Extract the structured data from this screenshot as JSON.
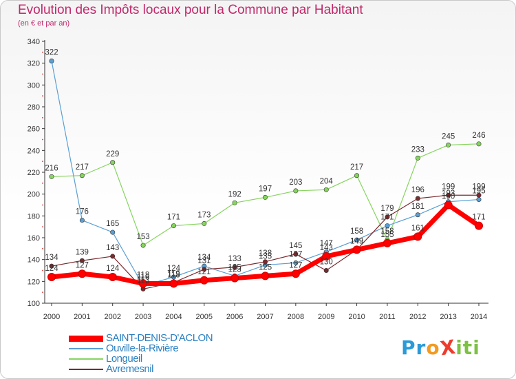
{
  "header": {
    "title": "Evolution des Impôts locaux pour la Commune par Habitant",
    "subtitle": "(en € et par an)"
  },
  "logo": {
    "text": "ProXiti",
    "letters": [
      {
        "char": "P",
        "color": "#2a9ad8"
      },
      {
        "char": "r",
        "color": "#2a9ad8"
      },
      {
        "char": "o",
        "color": "#f29a22"
      },
      {
        "char": "X",
        "color": "#ef3b2c"
      },
      {
        "char": "i",
        "color": "#7cc143"
      },
      {
        "char": "t",
        "color": "#7cc143"
      },
      {
        "char": "i",
        "color": "#7cc143"
      }
    ]
  },
  "chart_data": {
    "type": "line",
    "title": "Evolution des Impôts locaux pour la Commune par Habitant",
    "subtitle": "(en € et par an)",
    "xlabel": "",
    "ylabel": "",
    "categories": [
      "2000",
      "2001",
      "2002",
      "2003",
      "2004",
      "2005",
      "2006",
      "2007",
      "2008",
      "2009",
      "2010",
      "2011",
      "2012",
      "2013",
      "2014"
    ],
    "ylim": [
      100,
      340
    ],
    "yticks": [
      100,
      120,
      140,
      160,
      180,
      200,
      220,
      240,
      260,
      280,
      300,
      320,
      340
    ],
    "grid": false,
    "legend_position": "bottom-left",
    "series": [
      {
        "name": "SAINT-DENIS-D'ACLON",
        "color": "#ff0000",
        "values": [
          124,
          127,
          124,
          118,
          118,
          121,
          123,
          125,
          127,
          143,
          149,
          155,
          161,
          190,
          171
        ],
        "labels": [
          "124",
          "127",
          "124",
          "118",
          "118",
          "121",
          "123",
          "125",
          "127",
          "143",
          "149",
          "155",
          "161",
          "190",
          "171"
        ]
      },
      {
        "name": "Ouville-la-Rivière",
        "color": "#5a9fd4",
        "values": [
          322,
          176,
          165,
          116,
          124,
          134,
          125,
          135,
          137,
          147,
          158,
          171,
          181,
          193,
          195
        ],
        "labels": [
          "322",
          "176",
          "165",
          "116",
          "124",
          "134",
          "125",
          "135",
          "137",
          "147",
          "158",
          "171",
          "181",
          "193",
          "195"
        ]
      },
      {
        "name": "Longueil",
        "color": "#86d45e",
        "values": [
          216,
          217,
          229,
          153,
          171,
          173,
          192,
          197,
          203,
          204,
          217,
          158,
          233,
          245,
          246
        ],
        "labels": [
          "216",
          "217",
          "229",
          "153",
          "171",
          "173",
          "192",
          "197",
          "203",
          "204",
          "217",
          "158",
          "233",
          "245",
          "246"
        ]
      },
      {
        "name": "Avremesnil",
        "color": "#7b2a2e",
        "values": [
          134,
          139,
          143,
          113,
          119,
          131,
          133,
          138,
          145,
          130,
          149,
          179,
          196,
          199,
          199
        ],
        "labels": [
          "134",
          "139",
          "143",
          "113",
          "119",
          "131",
          "133",
          "138",
          "145",
          "130",
          "149",
          "179",
          "196",
          "199",
          "199"
        ]
      }
    ]
  }
}
